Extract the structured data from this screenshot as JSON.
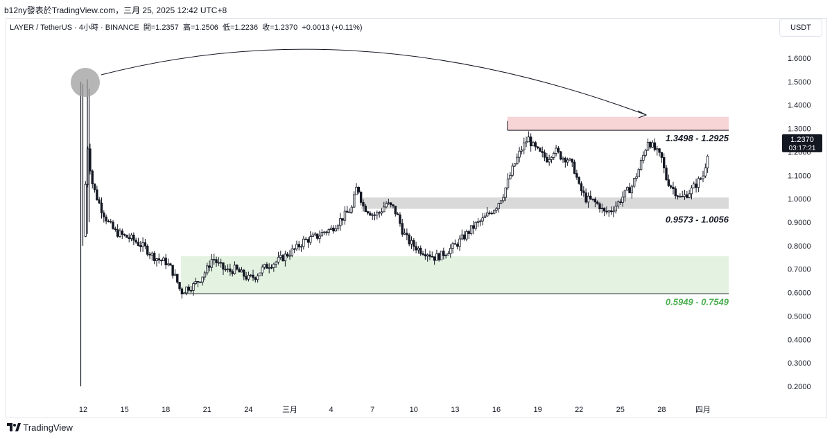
{
  "header": {
    "publisher": "b12ny發表於TradingView.com，三月 25, 2025 12:42 UTC+8"
  },
  "legend": {
    "symbol": "LAYER / TetherUS · 4小時 · BINANCE",
    "open": "開=1.2357",
    "high": "高=1.2506",
    "low": "低=1.2236",
    "close": "收=1.2370",
    "change": "+0.0013 (+0.11%)"
  },
  "currency_button": "USDT",
  "price_badge": {
    "price": "1.2370",
    "countdown": "03:17:21"
  },
  "brand": "TradingView",
  "colors": {
    "candle": "#131722",
    "supply_zone": "#f7d4d6",
    "mid_zone": "#d9d9d9",
    "demand_zone": "#e3f2e1",
    "demand_label": "#4caf50",
    "marker": "#9e9e9e",
    "badge_bg": "#131722"
  },
  "chart_data": {
    "type": "candlestick",
    "pair": "LAYER / TetherUS",
    "interval": "4小時",
    "exchange": "BINANCE",
    "x_ticks": [
      "12",
      "15",
      "18",
      "21",
      "24",
      "三月",
      "4",
      "7",
      "10",
      "13",
      "16",
      "19",
      "22",
      "25",
      "28",
      "四月"
    ],
    "y_ticks": [
      "1.6000",
      "1.5000",
      "1.4000",
      "1.3000",
      "1.2000",
      "1.1000",
      "1.0000",
      "0.9000",
      "0.8000",
      "0.7000",
      "0.6000",
      "0.5000",
      "0.4000",
      "0.3000",
      "0.2000"
    ],
    "y_range": [
      0.15,
      1.72
    ],
    "last_price": 1.237,
    "zones": [
      {
        "name": "supply",
        "low": 1.2925,
        "high": 1.3498,
        "label": "1.3498 - 1.2925"
      },
      {
        "name": "mid",
        "low": 0.9573,
        "high": 1.0056,
        "label": "0.9573 - 1.0056"
      },
      {
        "name": "demand",
        "low": 0.5949,
        "high": 0.7549,
        "label": "0.5949 - 0.7549"
      }
    ],
    "price_path": [
      [
        12,
        0.84
      ],
      [
        12.3,
        1.24
      ],
      [
        12.6,
        1.08
      ],
      [
        12.9,
        1.02
      ],
      [
        13.3,
        0.96
      ],
      [
        13.8,
        0.9
      ],
      [
        14.3,
        0.86
      ],
      [
        15,
        0.84
      ],
      [
        15.5,
        0.83
      ],
      [
        16,
        0.81
      ],
      [
        16.5,
        0.79
      ],
      [
        17,
        0.76
      ],
      [
        17.5,
        0.74
      ],
      [
        18,
        0.73
      ],
      [
        18.4,
        0.7
      ],
      [
        18.8,
        0.65
      ],
      [
        19.1,
        0.6
      ],
      [
        19.5,
        0.62
      ],
      [
        20,
        0.63
      ],
      [
        20.5,
        0.66
      ],
      [
        21,
        0.7
      ],
      [
        21.4,
        0.75
      ],
      [
        21.8,
        0.72
      ],
      [
        22.2,
        0.7
      ],
      [
        22.6,
        0.69
      ],
      [
        23,
        0.7
      ],
      [
        23.5,
        0.68
      ],
      [
        24,
        0.66
      ],
      [
        24.5,
        0.67
      ],
      [
        25,
        0.7
      ],
      [
        25.5,
        0.72
      ],
      [
        26,
        0.73
      ],
      [
        26.5,
        0.75
      ],
      [
        27,
        0.77
      ],
      [
        27.5,
        0.79
      ],
      [
        28,
        0.82
      ],
      [
        28.5,
        0.83
      ],
      [
        29,
        0.84
      ],
      [
        29.5,
        0.86
      ],
      [
        30,
        0.87
      ],
      [
        30.5,
        0.9
      ],
      [
        31,
        0.93
      ],
      [
        31.5,
        0.96
      ],
      [
        31.9,
        1.06
      ],
      [
        32.3,
        0.97
      ],
      [
        32.7,
        0.95
      ],
      [
        33.1,
        0.93
      ],
      [
        33.5,
        0.94
      ],
      [
        34,
        0.98
      ],
      [
        34.5,
        0.96
      ],
      [
        34.8,
        0.93
      ],
      [
        35.2,
        0.86
      ],
      [
        35.6,
        0.82
      ],
      [
        36,
        0.8
      ],
      [
        36.5,
        0.78
      ],
      [
        37,
        0.77
      ],
      [
        37.5,
        0.75
      ],
      [
        38,
        0.76
      ],
      [
        38.5,
        0.78
      ],
      [
        39,
        0.8
      ],
      [
        39.5,
        0.83
      ],
      [
        40,
        0.86
      ],
      [
        40.5,
        0.89
      ],
      [
        41,
        0.91
      ],
      [
        41.5,
        0.94
      ],
      [
        42,
        0.97
      ],
      [
        42.5,
        1.02
      ],
      [
        43,
        1.1
      ],
      [
        43.4,
        1.16
      ],
      [
        43.8,
        1.21
      ],
      [
        44.3,
        1.26
      ],
      [
        44.7,
        1.22
      ],
      [
        45.2,
        1.19
      ],
      [
        45.7,
        1.17
      ],
      [
        46.2,
        1.21
      ],
      [
        46.7,
        1.18
      ],
      [
        47.2,
        1.17
      ],
      [
        47.7,
        1.12
      ],
      [
        48,
        1.05
      ],
      [
        48.5,
        1.0
      ],
      [
        49,
        0.99
      ],
      [
        49.5,
        0.97
      ],
      [
        49.8,
        0.94
      ],
      [
        50.3,
        0.95
      ],
      [
        50.8,
        0.98
      ],
      [
        51.3,
        1.02
      ],
      [
        51.8,
        1.05
      ],
      [
        52.3,
        1.12
      ],
      [
        52.7,
        1.19
      ],
      [
        53,
        1.25
      ],
      [
        53.5,
        1.21
      ],
      [
        54,
        1.17
      ],
      [
        54.3,
        1.09
      ],
      [
        54.6,
        1.06
      ],
      [
        55,
        1.03
      ],
      [
        55.4,
        1.0
      ],
      [
        55.8,
        1.02
      ],
      [
        56.2,
        1.04
      ],
      [
        56.6,
        1.07
      ],
      [
        57,
        1.1
      ],
      [
        57.3,
        1.18
      ],
      [
        57.4,
        1.237
      ]
    ]
  }
}
